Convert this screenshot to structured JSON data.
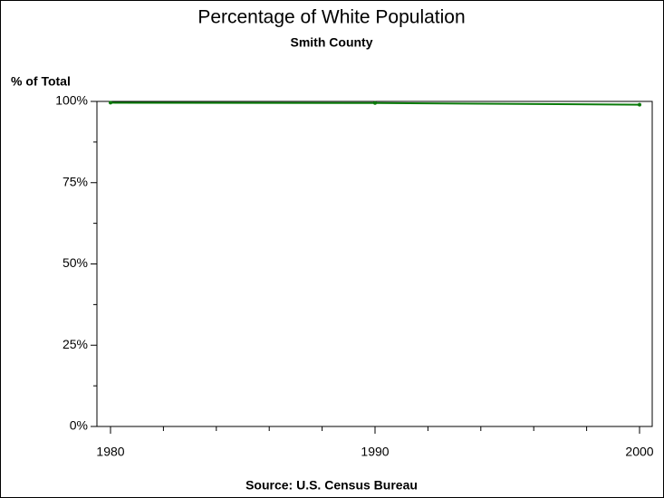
{
  "chart_data": {
    "type": "line",
    "title": "Percentage of White Population",
    "subtitle": "Smith County",
    "y_label": "% of Total",
    "footnote": "Source: U.S. Census Bureau",
    "x": [
      1980,
      1990,
      2000
    ],
    "values": [
      99.6,
      99.5,
      99.0
    ],
    "color": "#0a7a0a",
    "xlim": [
      1980,
      2000
    ],
    "xticks": [
      1980,
      1990,
      2000
    ],
    "xminor_ticks": [
      1982,
      1984,
      1986,
      1988,
      1992,
      1994,
      1996,
      1998
    ],
    "ylim": [
      0,
      100
    ],
    "yticks": [
      {
        "value": 0,
        "label": "0%"
      },
      {
        "value": 25,
        "label": "25%"
      },
      {
        "value": 50,
        "label": "50%"
      },
      {
        "value": 75,
        "label": "75%"
      },
      {
        "value": 100,
        "label": "100%"
      }
    ],
    "yminor_ticks": [
      12.5,
      37.5,
      62.5,
      87.5
    ]
  }
}
